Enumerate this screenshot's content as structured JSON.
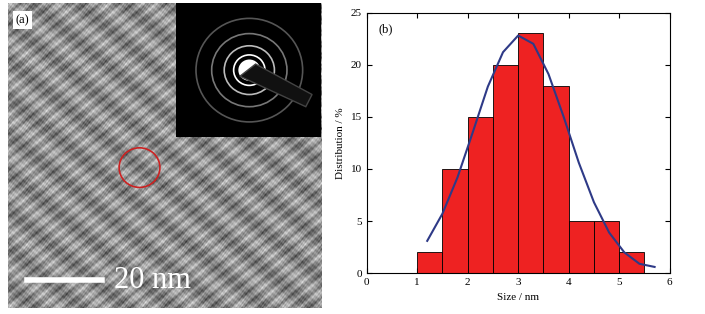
{
  "image_panel": {
    "panel_label": "(a)",
    "scale_bar": "20 nm"
  },
  "chart_data": {
    "type": "histogram",
    "panel_label": "(b)",
    "x_label": "Size / nm",
    "y_label": "Distribution / %",
    "bins": [
      1.0,
      1.5,
      2.0,
      2.5,
      3.0,
      3.5,
      4.0,
      4.5,
      5.0,
      5.5
    ],
    "counts": [
      2,
      10,
      15,
      20,
      23,
      18,
      5,
      5,
      2
    ],
    "color": "#ee2222",
    "fit": {
      "type": "line",
      "color": "#2e3a87",
      "x": [
        1.2,
        1.5,
        1.8,
        2.1,
        2.4,
        2.7,
        3.0,
        3.3,
        3.6,
        3.9,
        4.2,
        4.5,
        4.8,
        5.1,
        5.4,
        5.7
      ],
      "values": [
        3.1,
        5.7,
        9.2,
        13.5,
        17.9,
        21.2,
        22.8,
        22.0,
        19.1,
        15.0,
        10.6,
        6.8,
        3.9,
        2.0,
        0.9,
        0.6
      ]
    },
    "xlim": [
      0,
      6
    ],
    "xticks": [
      0,
      1,
      2,
      3,
      4,
      5,
      6
    ],
    "ylim": [
      0,
      25
    ],
    "yticks": [
      0,
      5,
      10,
      15,
      20,
      25
    ]
  }
}
